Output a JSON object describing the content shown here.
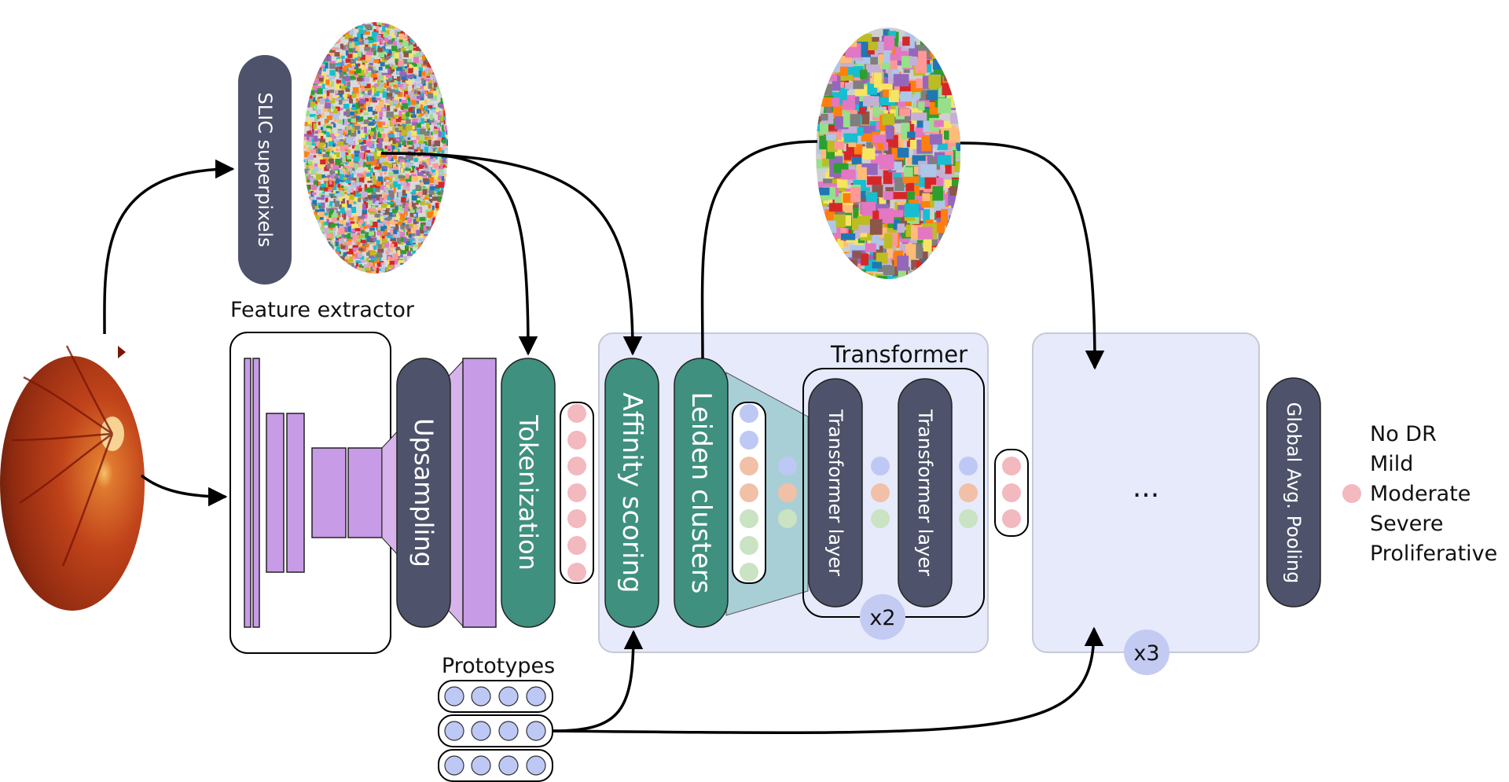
{
  "labels": {
    "slic": "SLIC superpixels",
    "feature_extractor": "Feature extractor",
    "upsampling": "Upsampling",
    "tokenization": "Tokenization",
    "affinity": "Affinity scoring",
    "leiden": "Leiden clusters",
    "transformer": "Transformer",
    "transformer_layer_1": "Transformer layer",
    "transformer_layer_2": "Transformer layer",
    "x2": "x2",
    "x3": "x3",
    "ellipsis": "...",
    "gap": "Global Avg. Pooling",
    "prototypes": "Prototypes"
  },
  "classes": [
    "No DR",
    "Mild",
    "Moderate",
    "Severe",
    "Proliferative"
  ],
  "colors": {
    "dark_block": "#4e536b",
    "teal_block": "#3f907f",
    "purple_layer": "#c79be6",
    "panel_fill": "#e6eafb",
    "token_pink": "#f2b9bf",
    "token_blue": "#bdc8f5",
    "token_orange": "#f1c0a6",
    "token_green": "#c9e3c3",
    "badge": "#c3cbf3",
    "cluster_fan": "#a9cfd6"
  },
  "icons": {
    "fundus": "retina-fundus-image",
    "superpixel_map": "superpixel-segmentation-image",
    "cluster_map": "leiden-cluster-image"
  }
}
